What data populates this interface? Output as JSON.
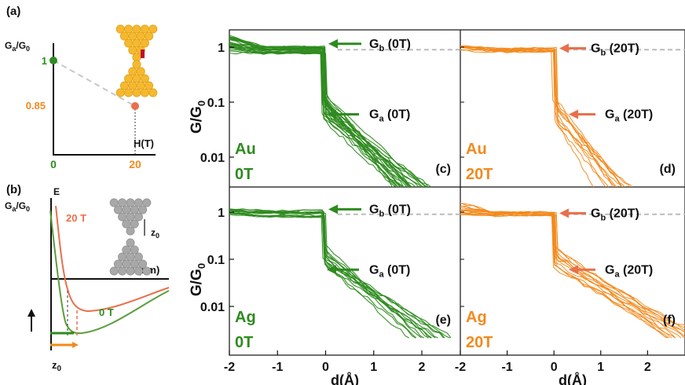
{
  "colors": {
    "green": "#2e8b1f",
    "orange": "#f28a1e",
    "orange_light": "#f5a455",
    "red_orange": "#e8704a",
    "gray_dash": "#bbbbbb",
    "gold": "#f5b82e",
    "gray_atom": "#a8a8a8",
    "axis": "#111111"
  },
  "panel_a": {
    "tag": "(a)",
    "ylabel_main": "G",
    "ylabel_sub": "a",
    "ylabel_rest": "/G",
    "ylabel_sub2": "0",
    "xlabel": "H(T)",
    "ytick_top": "1",
    "ytick_low": "0.85",
    "xtick_0": "0",
    "xtick_20": "20",
    "icon": "gold-atomic-junction-icon"
  },
  "panel_b": {
    "tag": "(b)",
    "ylabel_main": "G",
    "ylabel_sub": "a",
    "ylabel_rest": "/G",
    "ylabel_sub2": "0",
    "energy_label": "E",
    "xlabel": "z (nm)",
    "curve_20T": "20 T",
    "curve_0T": "0 T",
    "z0_main": "z",
    "z0_sub": "0",
    "icon": "silver-atomic-junction-icon"
  },
  "chart_data": [
    {
      "panel": "(c)",
      "type": "line",
      "metal": "Au",
      "field": "0T",
      "color": "green",
      "ylabel": "G/G0",
      "yscale": "log",
      "yticks": [
        "1",
        "0.1",
        "0.01"
      ],
      "xlim": [
        -2,
        2.8
      ],
      "ylim": [
        0.0025,
        2.2
      ],
      "arrow_top": {
        "label_main": "G",
        "label_sub": "b",
        "label_rest": " (0T)",
        "y": 0.9
      },
      "arrow_mid": {
        "label_main": "G",
        "label_sub": "a",
        "label_rest": " (0T)",
        "y": 0.06
      },
      "plateau_G": 0.9,
      "step_x": -0.05,
      "drop_G": 0.08,
      "end_x": 1.9,
      "end_G": 0.0025,
      "trace_count": 25
    },
    {
      "panel": "(d)",
      "type": "line",
      "metal": "Au",
      "field": "20T",
      "color": "orange",
      "yscale": "log",
      "xlim": [
        -2,
        2.8
      ],
      "ylim": [
        0.0025,
        2.2
      ],
      "arrow_top": {
        "label_main": "G",
        "label_sub": "b",
        "label_rest": " (20T)",
        "y": 0.87
      },
      "arrow_mid": {
        "label_main": "G",
        "label_sub": "a",
        "label_rest": " (20T)",
        "y": 0.06
      },
      "plateau_G": 0.87,
      "step_x": 0.0,
      "drop_G": 0.08,
      "end_x": 1.3,
      "end_G": 0.0025,
      "trace_count": 12
    },
    {
      "panel": "(e)",
      "type": "line",
      "metal": "Ag",
      "field": "0T",
      "color": "green",
      "ylabel": "G/G0",
      "yscale": "log",
      "yticks": [
        "1",
        "0.1",
        "0.01"
      ],
      "xticks": [
        "-2",
        "-1",
        "0",
        "1",
        "2"
      ],
      "xlabel": "d(Å)",
      "xlim": [
        -2,
        2.8
      ],
      "ylim": [
        0.0025,
        2.2
      ],
      "arrow_top": {
        "label_main": "G",
        "label_sub": "b",
        "label_rest": " (0T)",
        "y": 0.9
      },
      "arrow_mid": {
        "label_main": "G",
        "label_sub": "a",
        "label_rest": " (0T)",
        "y": 0.06
      },
      "plateau_G": 0.92,
      "step_x": -0.05,
      "drop_G": 0.12,
      "end_x": 2.1,
      "end_G": 0.0025,
      "trace_count": 14
    },
    {
      "panel": "(f)",
      "type": "line",
      "metal": "Ag",
      "field": "20T",
      "color": "orange",
      "yscale": "log",
      "xticks": [
        "-2",
        "-1",
        "0",
        "1",
        "2"
      ],
      "xlabel": "d(Å)",
      "xlim": [
        -2,
        2.8
      ],
      "ylim": [
        0.0025,
        2.2
      ],
      "arrow_top": {
        "label_main": "G",
        "label_sub": "b",
        "label_rest": " (20T)",
        "y": 0.9
      },
      "arrow_mid": {
        "label_main": "G",
        "label_sub": "a",
        "label_rest": " (20T)",
        "y": 0.06
      },
      "plateau_G": 0.92,
      "step_x": 0.0,
      "drop_G": 0.12,
      "end_x": 2.7,
      "end_G": 0.0025,
      "trace_count": 14
    }
  ]
}
